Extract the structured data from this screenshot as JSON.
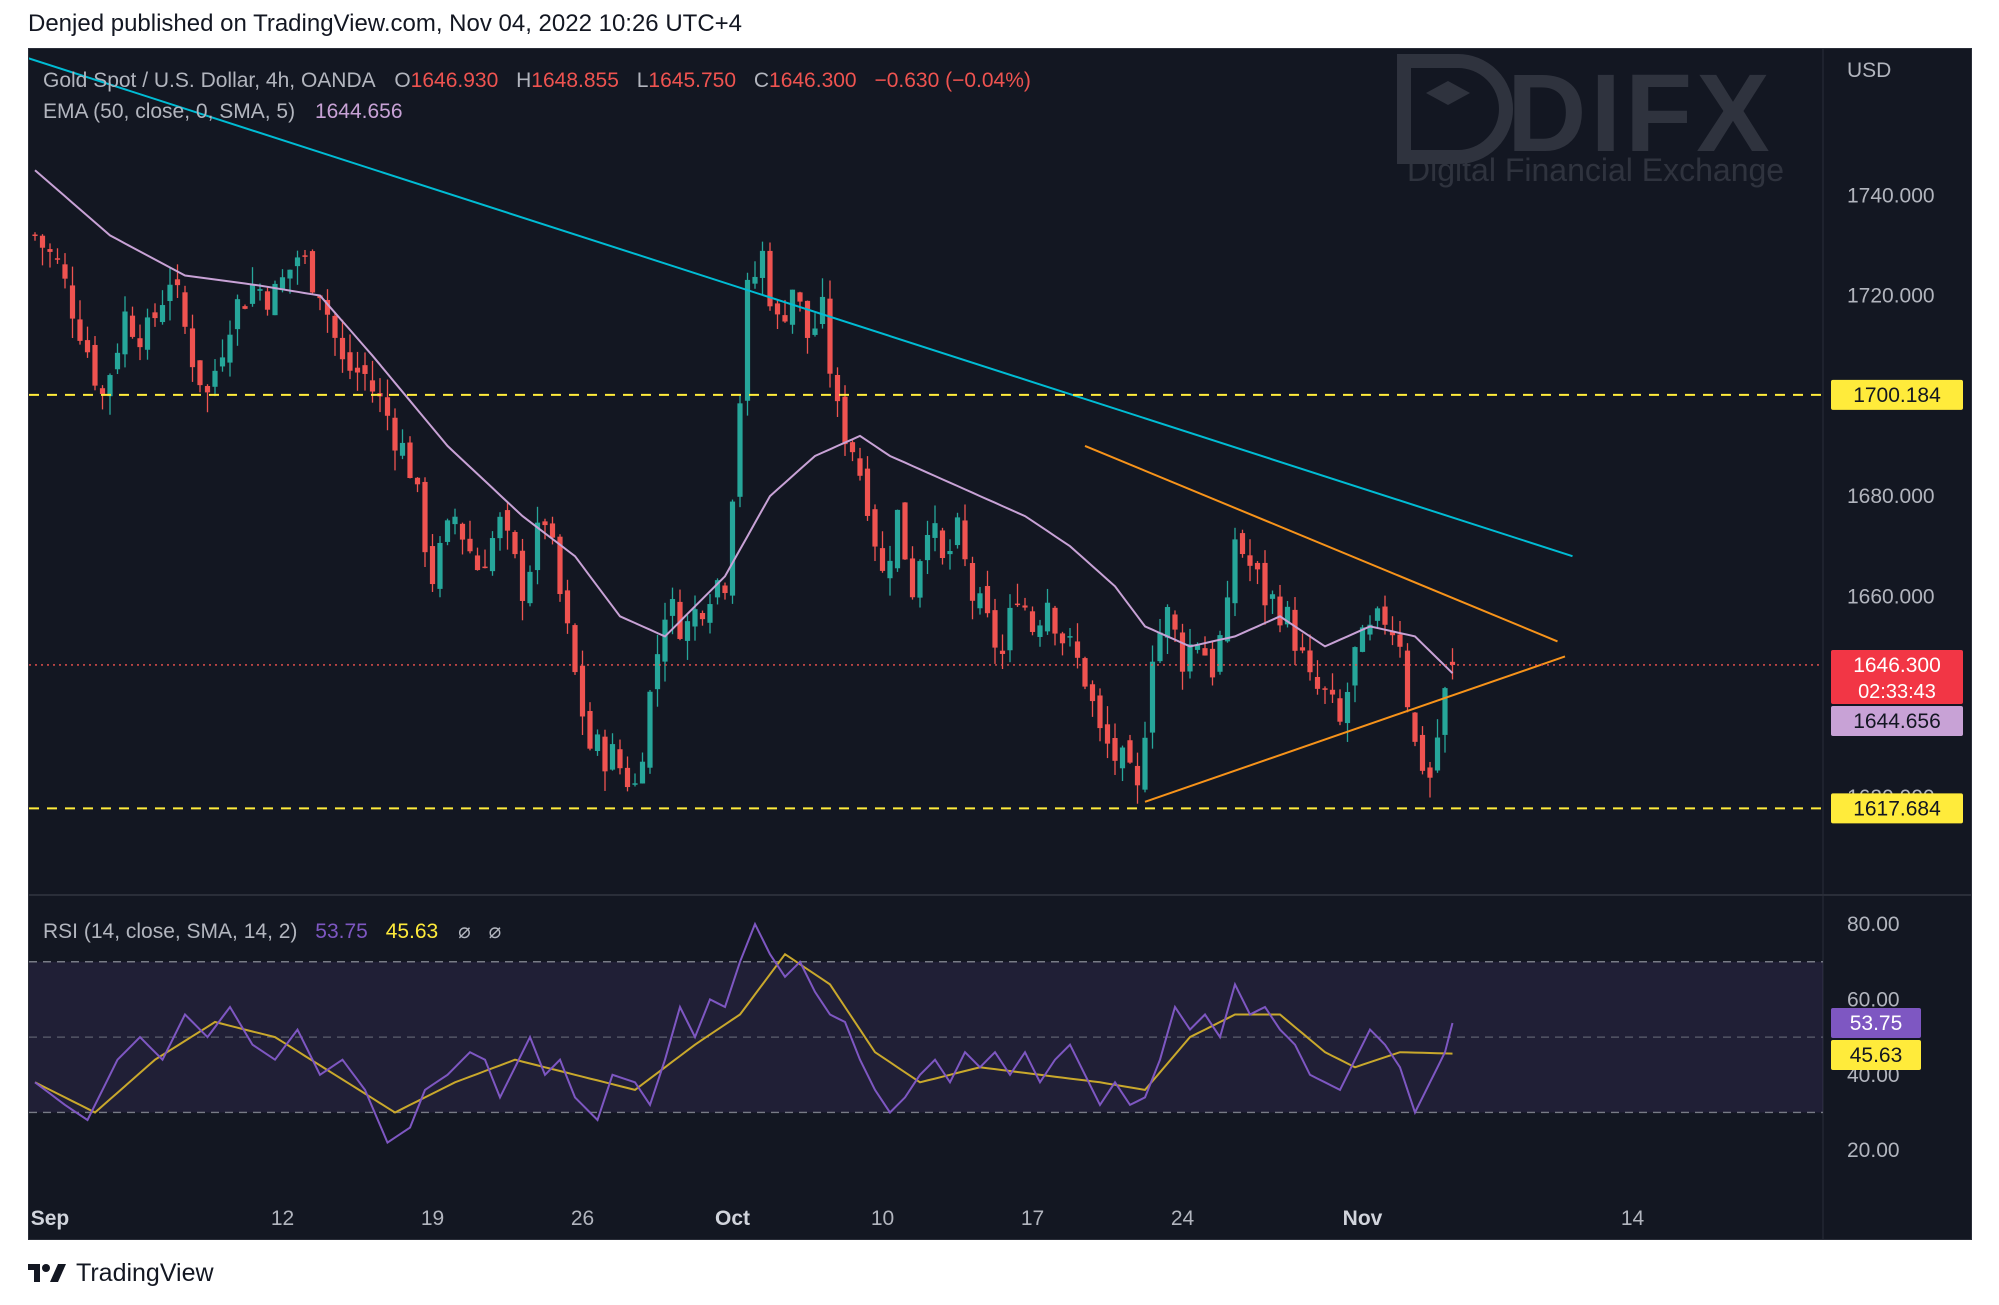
{
  "header": {
    "published": "Denjed published on TradingView.com, Nov 04, 2022 10:26 UTC+4"
  },
  "footer": {
    "brand": "TradingView"
  },
  "watermark": {
    "name": "DIFX",
    "tagline": "Digital Financial Exchange"
  },
  "legend": {
    "symbol": "Gold Spot / U.S. Dollar, 4h, OANDA",
    "o_label": "O",
    "o_value": "1646.930",
    "h_label": "H",
    "h_value": "1648.855",
    "l_label": "L",
    "l_value": "1645.750",
    "c_label": "C",
    "c_value": "1646.300",
    "change": "−0.630 (−0.04%)",
    "ema_label": "EMA (50, close, 0, SMA, 5)",
    "ema_value": "1644.656"
  },
  "rsi_legend": {
    "label": "RSI (14, close, SMA, 14, 2)",
    "rsi_value": "53.75",
    "sma_value": "45.63",
    "extra1": "⌀",
    "extra2": "⌀"
  },
  "price_axis": {
    "currency": "USD",
    "ticks": [
      "1740.000",
      "1720.000",
      "1680.000",
      "1660.000",
      "1620.000"
    ]
  },
  "rsi_axis": {
    "ticks": [
      "80.00",
      "60.00",
      "40.00",
      "20.00"
    ]
  },
  "time_axis": {
    "labels": [
      {
        "text": "Sep",
        "bar": 2,
        "bold": true
      },
      {
        "text": "12",
        "bar": 33,
        "bold": false
      },
      {
        "text": "19",
        "bar": 53,
        "bold": false
      },
      {
        "text": "26",
        "bar": 73,
        "bold": false
      },
      {
        "text": "Oct",
        "bar": 93,
        "bold": true
      },
      {
        "text": "10",
        "bar": 113,
        "bold": false
      },
      {
        "text": "17",
        "bar": 133,
        "bold": false
      },
      {
        "text": "24",
        "bar": 153,
        "bold": false
      },
      {
        "text": "Nov",
        "bar": 177,
        "bold": true
      },
      {
        "text": "14",
        "bar": 213,
        "bold": false
      }
    ]
  },
  "price_tags": {
    "level_high": "1700.184",
    "level_low": "1617.684",
    "last_price": "1646.300",
    "countdown": "02:33:43",
    "ema": "1644.656",
    "rsi": "53.75",
    "rsi_sma": "45.63"
  },
  "colors": {
    "background": "#131722",
    "up": "#26a69a",
    "down": "#ef5350",
    "ema": "#c8a2d6",
    "rsi": "#7e57c2",
    "rsi_sma": "#c9a82c",
    "trendline": "#00bcd4",
    "triangle": "#f7931a",
    "level": "#ffeb3b",
    "text": "#b2b5be"
  },
  "chart_data": {
    "type": "candlestick",
    "symbol": "Gold Spot / U.S. Dollar",
    "interval": "4h",
    "price_range": [
      1602,
      1768
    ],
    "rsi_range": [
      15,
      84
    ],
    "horizontal_levels": [
      1700.184,
      1617.684
    ],
    "last_price": 1646.3,
    "ema_last": 1644.656,
    "rsi_last": 53.75,
    "rsi_sma_last": 45.63,
    "rsi_bands": [
      30,
      50,
      70
    ],
    "anchors": [
      [
        0,
        1732
      ],
      [
        3,
        1726
      ],
      [
        6,
        1714
      ],
      [
        9,
        1700
      ],
      [
        12,
        1716
      ],
      [
        15,
        1712
      ],
      [
        18,
        1724
      ],
      [
        21,
        1708
      ],
      [
        23,
        1700
      ],
      [
        26,
        1716
      ],
      [
        29,
        1722
      ],
      [
        32,
        1720
      ],
      [
        35,
        1728
      ],
      [
        38,
        1722
      ],
      [
        41,
        1706
      ],
      [
        44,
        1704
      ],
      [
        47,
        1696
      ],
      [
        50,
        1686
      ],
      [
        53,
        1664
      ],
      [
        56,
        1676
      ],
      [
        59,
        1666
      ],
      [
        62,
        1674
      ],
      [
        65,
        1662
      ],
      [
        68,
        1676
      ],
      [
        70,
        1660
      ],
      [
        72,
        1644
      ],
      [
        74,
        1630
      ],
      [
        77,
        1628
      ],
      [
        80,
        1622
      ],
      [
        82,
        1640
      ],
      [
        84,
        1658
      ],
      [
        87,
        1654
      ],
      [
        90,
        1662
      ],
      [
        92,
        1664
      ],
      [
        94,
        1700
      ],
      [
        95,
        1720
      ],
      [
        97,
        1728
      ],
      [
        99,
        1714
      ],
      [
        101,
        1722
      ],
      [
        103,
        1712
      ],
      [
        105,
        1716
      ],
      [
        107,
        1696
      ],
      [
        109,
        1690
      ],
      [
        111,
        1680
      ],
      [
        113,
        1664
      ],
      [
        115,
        1676
      ],
      [
        117,
        1662
      ],
      [
        119,
        1676
      ],
      [
        121,
        1666
      ],
      [
        123,
        1672
      ],
      [
        125,
        1660
      ],
      [
        127,
        1654
      ],
      [
        129,
        1648
      ],
      [
        131,
        1662
      ],
      [
        133,
        1654
      ],
      [
        135,
        1660
      ],
      [
        137,
        1652
      ],
      [
        140,
        1644
      ],
      [
        142,
        1632
      ],
      [
        145,
        1626
      ],
      [
        147,
        1620
      ],
      [
        149,
        1650
      ],
      [
        151,
        1656
      ],
      [
        153,
        1648
      ],
      [
        155,
        1652
      ],
      [
        157,
        1646
      ],
      [
        159,
        1656
      ],
      [
        160,
        1672
      ],
      [
        162,
        1666
      ],
      [
        164,
        1660
      ],
      [
        166,
        1658
      ],
      [
        168,
        1652
      ],
      [
        170,
        1642
      ],
      [
        172,
        1640
      ],
      [
        174,
        1634
      ],
      [
        176,
        1648
      ],
      [
        178,
        1652
      ],
      [
        180,
        1656
      ],
      [
        182,
        1652
      ],
      [
        183,
        1640
      ],
      [
        184,
        1630
      ],
      [
        186,
        1624
      ],
      [
        187,
        1632
      ],
      [
        188,
        1640
      ],
      [
        189,
        1646.3
      ]
    ],
    "ema50_anchors": [
      [
        0,
        1745
      ],
      [
        10,
        1732
      ],
      [
        20,
        1724
      ],
      [
        30,
        1722
      ],
      [
        38,
        1720
      ],
      [
        45,
        1708
      ],
      [
        55,
        1690
      ],
      [
        65,
        1676
      ],
      [
        72,
        1668
      ],
      [
        78,
        1656
      ],
      [
        84,
        1652
      ],
      [
        92,
        1664
      ],
      [
        98,
        1680
      ],
      [
        104,
        1688
      ],
      [
        110,
        1692
      ],
      [
        114,
        1688
      ],
      [
        120,
        1684
      ],
      [
        126,
        1680
      ],
      [
        132,
        1676
      ],
      [
        138,
        1670
      ],
      [
        144,
        1662
      ],
      [
        148,
        1654
      ],
      [
        154,
        1650
      ],
      [
        160,
        1652
      ],
      [
        166,
        1656
      ],
      [
        172,
        1650
      ],
      [
        178,
        1654
      ],
      [
        184,
        1652
      ],
      [
        189,
        1644.656
      ]
    ],
    "rsi_anchors": [
      [
        0,
        38
      ],
      [
        4,
        32
      ],
      [
        7,
        28
      ],
      [
        11,
        44
      ],
      [
        14,
        50
      ],
      [
        17,
        44
      ],
      [
        20,
        56
      ],
      [
        23,
        50
      ],
      [
        26,
        58
      ],
      [
        29,
        48
      ],
      [
        32,
        44
      ],
      [
        35,
        52
      ],
      [
        38,
        40
      ],
      [
        41,
        44
      ],
      [
        44,
        36
      ],
      [
        47,
        22
      ],
      [
        50,
        26
      ],
      [
        52,
        36
      ],
      [
        55,
        40
      ],
      [
        58,
        46
      ],
      [
        60,
        44
      ],
      [
        62,
        34
      ],
      [
        64,
        42
      ],
      [
        66,
        50
      ],
      [
        68,
        40
      ],
      [
        70,
        44
      ],
      [
        72,
        34
      ],
      [
        75,
        28
      ],
      [
        77,
        40
      ],
      [
        80,
        38
      ],
      [
        82,
        32
      ],
      [
        84,
        44
      ],
      [
        86,
        58
      ],
      [
        88,
        50
      ],
      [
        90,
        60
      ],
      [
        92,
        58
      ],
      [
        94,
        70
      ],
      [
        96,
        80
      ],
      [
        98,
        72
      ],
      [
        100,
        66
      ],
      [
        102,
        70
      ],
      [
        104,
        62
      ],
      [
        106,
        56
      ],
      [
        108,
        54
      ],
      [
        110,
        44
      ],
      [
        112,
        36
      ],
      [
        114,
        30
      ],
      [
        116,
        34
      ],
      [
        118,
        40
      ],
      [
        120,
        44
      ],
      [
        122,
        38
      ],
      [
        124,
        46
      ],
      [
        126,
        42
      ],
      [
        128,
        46
      ],
      [
        130,
        40
      ],
      [
        132,
        46
      ],
      [
        134,
        38
      ],
      [
        136,
        44
      ],
      [
        138,
        48
      ],
      [
        140,
        40
      ],
      [
        142,
        32
      ],
      [
        144,
        38
      ],
      [
        146,
        32
      ],
      [
        148,
        34
      ],
      [
        150,
        44
      ],
      [
        152,
        58
      ],
      [
        154,
        52
      ],
      [
        156,
        56
      ],
      [
        158,
        50
      ],
      [
        160,
        64
      ],
      [
        162,
        56
      ],
      [
        164,
        58
      ],
      [
        166,
        52
      ],
      [
        168,
        48
      ],
      [
        170,
        40
      ],
      [
        172,
        38
      ],
      [
        174,
        36
      ],
      [
        176,
        44
      ],
      [
        178,
        52
      ],
      [
        180,
        48
      ],
      [
        182,
        42
      ],
      [
        184,
        30
      ],
      [
        186,
        38
      ],
      [
        188,
        46
      ],
      [
        189,
        53.75
      ]
    ],
    "rsi_sma_anchors": [
      [
        0,
        38
      ],
      [
        8,
        30
      ],
      [
        16,
        44
      ],
      [
        24,
        54
      ],
      [
        32,
        50
      ],
      [
        40,
        40
      ],
      [
        48,
        30
      ],
      [
        56,
        38
      ],
      [
        64,
        44
      ],
      [
        72,
        40
      ],
      [
        80,
        36
      ],
      [
        88,
        48
      ],
      [
        94,
        56
      ],
      [
        100,
        72
      ],
      [
        106,
        64
      ],
      [
        112,
        46
      ],
      [
        118,
        38
      ],
      [
        126,
        42
      ],
      [
        134,
        40
      ],
      [
        142,
        38
      ],
      [
        148,
        36
      ],
      [
        154,
        50
      ],
      [
        160,
        56
      ],
      [
        166,
        56
      ],
      [
        172,
        46
      ],
      [
        176,
        42
      ],
      [
        182,
        46
      ],
      [
        189,
        45.63
      ]
    ],
    "trendlines": [
      {
        "name": "long-term-resistance",
        "from": [
          -25,
          1779
        ],
        "to": [
          205,
          1668
        ]
      },
      {
        "name": "triangle-upper",
        "from": [
          140,
          1690
        ],
        "to": [
          203,
          1651
        ]
      },
      {
        "name": "triangle-lower",
        "from": [
          148,
          1619
        ],
        "to": [
          204,
          1648
        ]
      }
    ]
  }
}
